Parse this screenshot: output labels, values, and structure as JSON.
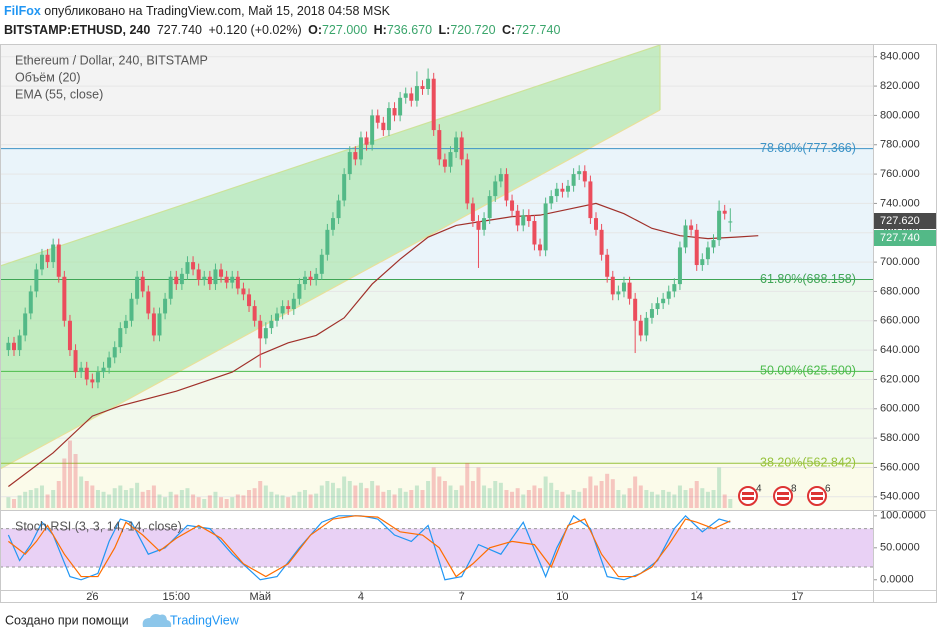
{
  "header": {
    "author": "FilFox",
    "published": "опубликовано на TradingView.com, Май 15, 2018 04:58 MSK",
    "symbol": "BITSTAMP:ETHUSD, 240",
    "last": "727.740",
    "change": "+0.120 (+0.02%)",
    "quote": [
      {
        "label": "O:",
        "value": "727.000"
      },
      {
        "label": "H:",
        "value": "736.670"
      },
      {
        "label": "L:",
        "value": "720.720"
      },
      {
        "label": "C:",
        "value": "727.740"
      }
    ],
    "price_labels": [
      "727.620",
      "727.740"
    ],
    "events": [
      "4",
      "8",
      "6"
    ],
    "footer": {
      "text": "Создано при помощи",
      "brand": "TradingView"
    }
  },
  "chart_data": {
    "type": "candlestick",
    "title": "Ethereum / Dollar, 240, BITSTAMP",
    "up_color": "#53b987",
    "down_color": "#eb4d5c",
    "grid": true,
    "ylim": [
      531,
      848
    ],
    "yticks": [
      {
        "value": 540,
        "label": "540.000"
      },
      {
        "value": 560,
        "label": "560.000"
      },
      {
        "value": 580,
        "label": "580.000"
      },
      {
        "value": 600,
        "label": "600.000"
      },
      {
        "value": 620,
        "label": "620.000"
      },
      {
        "value": 640,
        "label": "640.000"
      },
      {
        "value": 660,
        "label": "660.000"
      },
      {
        "value": 680,
        "label": "680.000"
      },
      {
        "value": 700,
        "label": "700.000"
      },
      {
        "value": 720,
        "label": "720.000"
      },
      {
        "value": 740,
        "label": "740.000"
      },
      {
        "value": 760,
        "label": "760.000"
      },
      {
        "value": 780,
        "label": "780.000"
      },
      {
        "value": 800,
        "label": "800.000"
      },
      {
        "value": 820,
        "label": "820.000"
      },
      {
        "value": 840,
        "label": "840.000"
      }
    ],
    "xlim": [
      -1.5,
      154.5
    ],
    "xticks": [
      {
        "value": 15,
        "label": "26"
      },
      {
        "value": 30,
        "label": "15:00"
      },
      {
        "value": 45,
        "label": "Май"
      },
      {
        "value": 63,
        "label": "4"
      },
      {
        "value": 81,
        "label": "7"
      },
      {
        "value": 99,
        "label": "10"
      },
      {
        "value": 123,
        "label": "14"
      },
      {
        "value": 141,
        "label": "17"
      }
    ],
    "fib_levels": [
      {
        "value": 777.366,
        "label": "78.60%(777.366)"
      },
      {
        "value": 688.158,
        "label": "61.80%(688.158)"
      },
      {
        "value": 625.5,
        "label": "50.00%(625.500)"
      },
      {
        "value": 562.842,
        "label": "38.20%(562.842)"
      }
    ],
    "fib_colors": [
      "#3d93c6",
      "#3fa556",
      "#4cbb4c",
      "#97c23c"
    ],
    "fib_fills": [
      "#f3f3f3",
      "#eaf4fa",
      "#edf7ee",
      "#f2f9ec",
      "#fbfbea"
    ],
    "ohlc": [
      [
        640,
        649,
        636,
        645
      ],
      [
        645,
        649,
        636,
        640
      ],
      [
        640,
        654,
        636,
        650
      ],
      [
        650,
        669,
        646,
        665
      ],
      [
        665,
        684,
        661,
        680
      ],
      [
        680,
        699,
        676,
        695
      ],
      [
        695,
        709,
        691,
        705
      ],
      [
        705,
        709,
        696,
        700
      ],
      [
        700,
        716,
        696,
        712
      ],
      [
        712,
        716,
        686,
        690
      ],
      [
        690,
        694,
        656,
        660
      ],
      [
        660,
        664,
        636,
        640
      ],
      [
        640,
        644,
        621,
        625
      ],
      [
        625,
        632,
        621,
        628
      ],
      [
        628,
        632,
        616,
        620
      ],
      [
        620,
        624,
        614,
        618
      ],
      [
        618,
        629,
        614,
        625
      ],
      [
        625,
        632,
        621,
        628
      ],
      [
        628,
        639,
        624,
        635
      ],
      [
        635,
        646,
        631,
        642
      ],
      [
        642,
        659,
        638,
        655
      ],
      [
        655,
        664,
        651,
        660
      ],
      [
        660,
        679,
        656,
        675
      ],
      [
        675,
        694,
        671,
        690
      ],
      [
        690,
        694,
        676,
        680
      ],
      [
        680,
        684,
        661,
        665
      ],
      [
        665,
        669,
        646,
        650
      ],
      [
        650,
        669,
        646,
        665
      ],
      [
        665,
        679,
        661,
        675
      ],
      [
        675,
        694,
        671,
        690
      ],
      [
        690,
        694,
        681,
        685
      ],
      [
        685,
        696,
        681,
        692
      ],
      [
        692,
        704,
        688,
        700
      ],
      [
        700,
        704,
        691,
        695
      ],
      [
        695,
        699,
        684,
        688
      ],
      [
        688,
        694,
        684,
        690
      ],
      [
        690,
        694,
        681,
        685
      ],
      [
        685,
        699,
        681,
        695
      ],
      [
        695,
        699,
        686,
        690
      ],
      [
        690,
        694,
        682,
        686
      ],
      [
        686,
        694,
        682,
        690
      ],
      [
        690,
        694,
        678,
        682
      ],
      [
        682,
        686,
        674,
        678
      ],
      [
        678,
        682,
        666,
        670
      ],
      [
        670,
        674,
        656,
        660
      ],
      [
        660,
        664,
        628,
        648
      ],
      [
        648,
        659,
        644,
        655
      ],
      [
        655,
        664,
        651,
        660
      ],
      [
        660,
        669,
        656,
        665
      ],
      [
        665,
        674,
        661,
        670
      ],
      [
        670,
        674,
        664,
        668
      ],
      [
        668,
        679,
        664,
        675
      ],
      [
        675,
        689,
        671,
        685
      ],
      [
        685,
        694,
        681,
        690
      ],
      [
        690,
        694,
        684,
        688
      ],
      [
        688,
        696,
        684,
        692
      ],
      [
        692,
        709,
        688,
        705
      ],
      [
        705,
        726,
        701,
        722
      ],
      [
        722,
        734,
        718,
        730
      ],
      [
        730,
        746,
        726,
        742
      ],
      [
        742,
        764,
        738,
        760
      ],
      [
        760,
        779,
        756,
        775
      ],
      [
        775,
        779,
        766,
        770
      ],
      [
        770,
        789,
        766,
        785
      ],
      [
        785,
        789,
        776,
        780
      ],
      [
        780,
        804,
        776,
        800
      ],
      [
        800,
        804,
        791,
        795
      ],
      [
        795,
        799,
        786,
        790
      ],
      [
        790,
        809,
        786,
        805
      ],
      [
        805,
        809,
        796,
        800
      ],
      [
        800,
        816,
        796,
        812
      ],
      [
        812,
        819,
        808,
        815
      ],
      [
        815,
        819,
        806,
        810
      ],
      [
        810,
        830,
        806,
        820
      ],
      [
        820,
        824,
        814,
        818
      ],
      [
        818,
        832,
        814,
        825
      ],
      [
        825,
        829,
        786,
        790
      ],
      [
        790,
        794,
        766,
        770
      ],
      [
        770,
        774,
        761,
        765
      ],
      [
        765,
        779,
        761,
        775
      ],
      [
        775,
        789,
        771,
        785
      ],
      [
        785,
        789,
        766,
        770
      ],
      [
        770,
        774,
        736,
        740
      ],
      [
        740,
        744,
        724,
        728
      ],
      [
        728,
        732,
        696,
        722
      ],
      [
        722,
        734,
        718,
        730
      ],
      [
        730,
        749,
        726,
        745
      ],
      [
        745,
        759,
        741,
        755
      ],
      [
        755,
        764,
        751,
        760
      ],
      [
        760,
        764,
        738,
        742
      ],
      [
        742,
        746,
        731,
        735
      ],
      [
        735,
        739,
        721,
        725
      ],
      [
        725,
        736,
        721,
        732
      ],
      [
        732,
        736,
        724,
        728
      ],
      [
        728,
        732,
        708,
        712
      ],
      [
        712,
        716,
        704,
        708
      ],
      [
        708,
        744,
        704,
        740
      ],
      [
        740,
        749,
        736,
        745
      ],
      [
        745,
        754,
        741,
        750
      ],
      [
        750,
        754,
        744,
        748
      ],
      [
        748,
        756,
        744,
        752
      ],
      [
        752,
        764,
        748,
        760
      ],
      [
        760,
        766,
        756,
        762
      ],
      [
        762,
        766,
        751,
        755
      ],
      [
        755,
        759,
        726,
        730
      ],
      [
        730,
        734,
        718,
        722
      ],
      [
        722,
        726,
        701,
        705
      ],
      [
        705,
        709,
        686,
        690
      ],
      [
        690,
        694,
        674,
        678
      ],
      [
        678,
        684,
        674,
        680
      ],
      [
        680,
        690,
        676,
        686
      ],
      [
        686,
        690,
        671,
        675
      ],
      [
        675,
        679,
        638,
        660
      ],
      [
        660,
        664,
        646,
        650
      ],
      [
        650,
        666,
        646,
        662
      ],
      [
        662,
        672,
        658,
        668
      ],
      [
        668,
        676,
        664,
        672
      ],
      [
        672,
        679,
        668,
        675
      ],
      [
        675,
        684,
        671,
        680
      ],
      [
        680,
        689,
        676,
        685
      ],
      [
        685,
        714,
        681,
        710
      ],
      [
        710,
        729,
        706,
        725
      ],
      [
        725,
        729,
        718,
        722
      ],
      [
        722,
        726,
        694,
        698
      ],
      [
        698,
        706,
        694,
        702
      ],
      [
        702,
        714,
        698,
        710
      ],
      [
        710,
        719,
        706,
        715
      ],
      [
        715,
        742,
        711,
        735
      ],
      [
        735,
        739,
        729,
        733
      ],
      [
        727.0,
        736.67,
        720.72,
        727.74
      ]
    ],
    "series": [
      {
        "name": "Объём (20)",
        "values": [
          12,
          10,
          14,
          18,
          20,
          22,
          25,
          15,
          20,
          30,
          55,
          75,
          60,
          35,
          30,
          25,
          20,
          18,
          15,
          22,
          25,
          20,
          22,
          28,
          18,
          20,
          25,
          15,
          12,
          18,
          15,
          20,
          22,
          15,
          12,
          10,
          14,
          18,
          12,
          10,
          12,
          15,
          14,
          20,
          22,
          30,
          25,
          18,
          15,
          14,
          12,
          14,
          18,
          20,
          15,
          16,
          25,
          30,
          28,
          22,
          35,
          30,
          25,
          28,
          22,
          30,
          25,
          18,
          20,
          15,
          22,
          18,
          20,
          25,
          20,
          30,
          45,
          35,
          30,
          25,
          20,
          25,
          50,
          30,
          45,
          25,
          22,
          30,
          28,
          20,
          18,
          22,
          15,
          20,
          25,
          22,
          35,
          28,
          20,
          18,
          15,
          20,
          18,
          22,
          35,
          25,
          30,
          38,
          32,
          20,
          15,
          22,
          35,
          25,
          20,
          18,
          15,
          20,
          18,
          15,
          25,
          20,
          22,
          30,
          22,
          18,
          20,
          45,
          15,
          10
        ]
      },
      {
        "name": "EMA (55, close)",
        "color": "#a0302a",
        "x": [
          0,
          8,
          15,
          20,
          30,
          40,
          45,
          50,
          55,
          60,
          65,
          70,
          75,
          80,
          85,
          90,
          95,
          100,
          105,
          110,
          115,
          120,
          125,
          130,
          134
        ],
        "values": [
          547,
          570,
          595,
          602,
          612,
          625,
          637,
          645,
          650,
          662,
          685,
          702,
          717,
          725,
          728,
          731,
          732,
          736,
          740,
          733,
          723,
          718,
          716,
          717,
          718
        ]
      }
    ],
    "stoch": {
      "title": "Stoch RSI (3, 3, 14, 14, close)",
      "ylim": [
        -16,
        106
      ],
      "yticks": [
        {
          "value": 0,
          "label": "0.0000"
        },
        {
          "value": 50,
          "label": "50.0000"
        },
        {
          "value": 100,
          "label": "100.0000"
        }
      ],
      "band": [
        20,
        80
      ],
      "band_color": "#e3c6f2",
      "series": [
        {
          "color": "#2196f3",
          "x": [
            0,
            2,
            4,
            6,
            8,
            11,
            13,
            16,
            18,
            20,
            22,
            25,
            28,
            32,
            36,
            40,
            45,
            48,
            52,
            56,
            59,
            63,
            66,
            69,
            72,
            75,
            78,
            81,
            84,
            88,
            92,
            96,
            98,
            101,
            104,
            107,
            110,
            113,
            116,
            119,
            121,
            124,
            127,
            129
          ],
          "values": [
            70,
            30,
            55,
            90,
            70,
            5,
            0,
            10,
            60,
            95,
            90,
            40,
            50,
            85,
            80,
            40,
            0,
            5,
            50,
            90,
            100,
            100,
            95,
            70,
            60,
            85,
            0,
            5,
            55,
            40,
            90,
            5,
            50,
            100,
            80,
            5,
            0,
            10,
            30,
            80,
            100,
            75,
            95,
            90
          ]
        },
        {
          "color": "#ff6d00",
          "x": [
            0,
            3,
            5,
            7,
            10,
            13,
            16,
            19,
            21,
            24,
            27,
            30,
            34,
            38,
            42,
            46,
            50,
            54,
            58,
            62,
            66,
            70,
            74,
            77,
            80,
            83,
            86,
            90,
            94,
            97,
            100,
            103,
            106,
            109,
            112,
            115,
            118,
            121,
            123,
            126,
            129
          ],
          "values": [
            60,
            40,
            60,
            85,
            40,
            5,
            5,
            50,
            90,
            70,
            45,
            65,
            85,
            65,
            25,
            5,
            25,
            70,
            95,
            100,
            98,
            75,
            70,
            50,
            5,
            25,
            50,
            60,
            55,
            20,
            85,
            95,
            40,
            5,
            5,
            20,
            55,
            95,
            90,
            80,
            92
          ]
        }
      ]
    }
  }
}
